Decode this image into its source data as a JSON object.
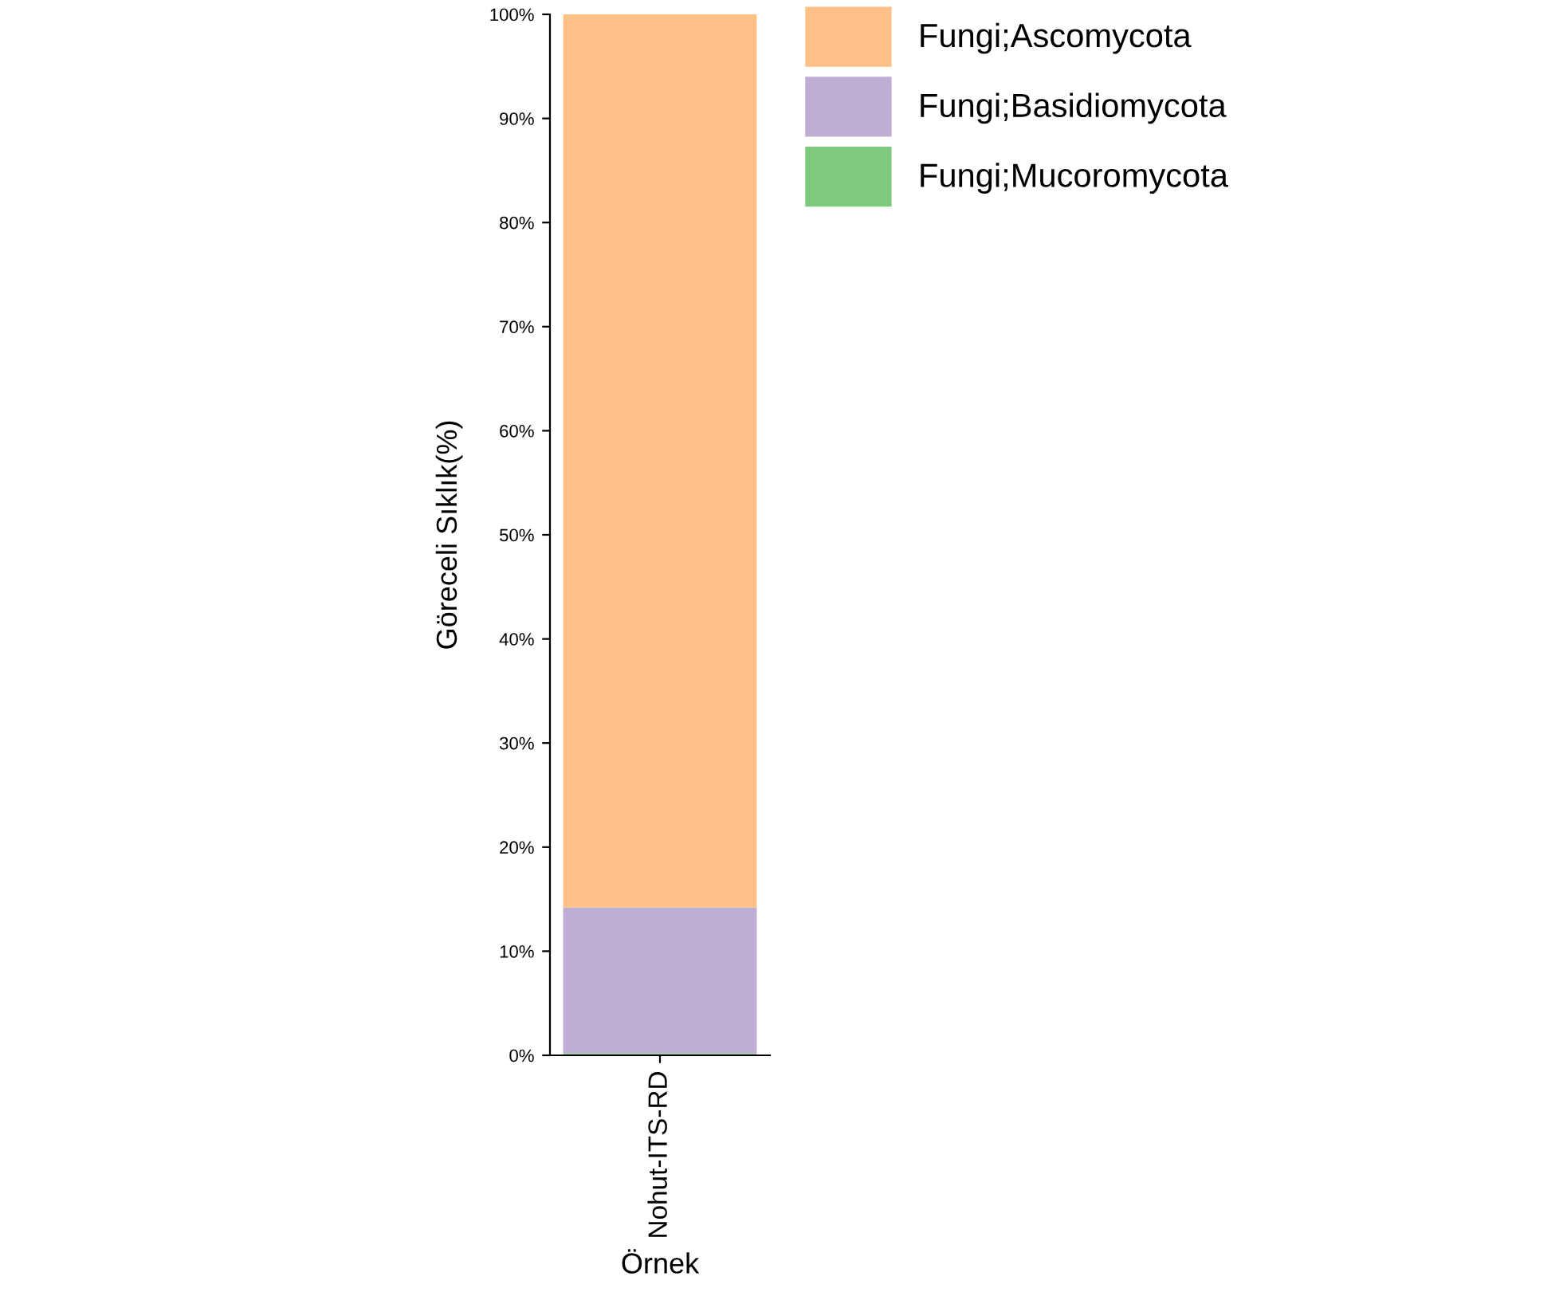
{
  "chart_data": {
    "type": "bar",
    "stacked": true,
    "xlabel": "Örnek",
    "ylabel": "Göreceli Sıklık(%)",
    "categories": [
      "Nohut-ITS-RD"
    ],
    "series": [
      {
        "name": "Fungi;Mucoromycota",
        "color": "#7fc97f",
        "values": [
          0.2
        ]
      },
      {
        "name": "Fungi;Basidiomycota",
        "color": "#beaed4",
        "values": [
          14
        ]
      },
      {
        "name": "Fungi;Ascomycota",
        "color": "#fdc086",
        "values": [
          85.8
        ]
      }
    ],
    "ylim": [
      0,
      100
    ],
    "yticks": [
      {
        "value": 0,
        "label": "0%"
      },
      {
        "value": 10,
        "label": "10%"
      },
      {
        "value": 20,
        "label": "20%"
      },
      {
        "value": 30,
        "label": "30%"
      },
      {
        "value": 40,
        "label": "40%"
      },
      {
        "value": 50,
        "label": "50%"
      },
      {
        "value": 60,
        "label": "60%"
      },
      {
        "value": 70,
        "label": "70%"
      },
      {
        "value": 80,
        "label": "80%"
      },
      {
        "value": 90,
        "label": "90%"
      },
      {
        "value": 100,
        "label": "100%"
      }
    ],
    "grid": false,
    "legend": "right"
  }
}
